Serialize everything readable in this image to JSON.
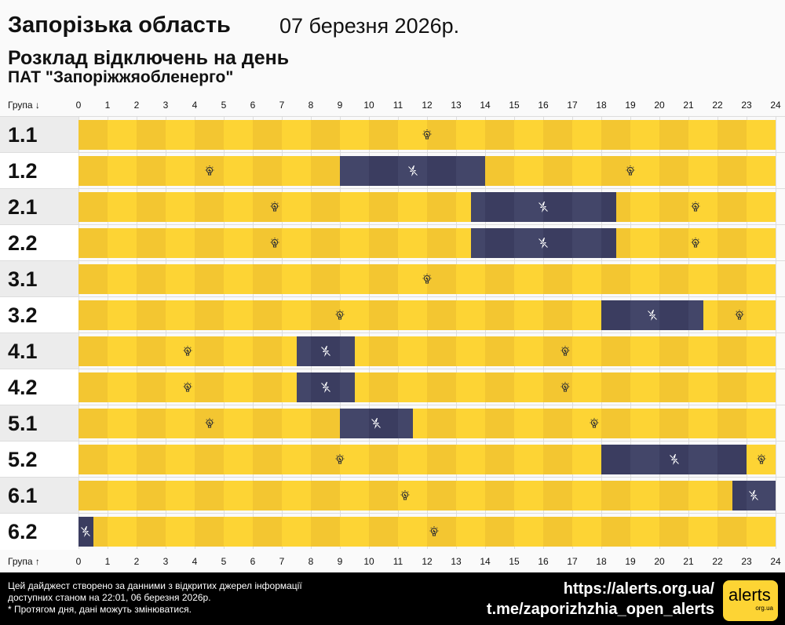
{
  "header": {
    "title": "Запорізька область",
    "date": "07 березня 2026р.",
    "subtitle": "Розклад відключень на день",
    "company": "ПАТ \"Запоріжжяобленерго\""
  },
  "axis": {
    "group_label_top": "Група ↓",
    "group_label_bottom": "Група ↑",
    "ticks": [
      "0",
      "1",
      "2",
      "3",
      "4",
      "5",
      "6",
      "7",
      "8",
      "9",
      "10",
      "11",
      "12",
      "13",
      "14",
      "15",
      "16",
      "17",
      "18",
      "19",
      "20",
      "21",
      "22",
      "23",
      "24"
    ]
  },
  "colors": {
    "on_light": "#fdd434",
    "on_dark": "#f3c631",
    "off_light": "#434669",
    "off_dark": "#3b3d60",
    "row_grey": "#ececec"
  },
  "icons": {
    "on": "lightbulb-icon",
    "off": "power-off-icon"
  },
  "chart_data": {
    "type": "table",
    "x_unit": "hour",
    "xlim": [
      0,
      24
    ],
    "groups": [
      {
        "name": "1.1",
        "outages": []
      },
      {
        "name": "1.2",
        "outages": [
          [
            9,
            14
          ]
        ]
      },
      {
        "name": "2.1",
        "outages": [
          [
            13.5,
            18.5
          ]
        ]
      },
      {
        "name": "2.2",
        "outages": [
          [
            13.5,
            18.5
          ]
        ]
      },
      {
        "name": "3.1",
        "outages": []
      },
      {
        "name": "3.2",
        "outages": [
          [
            18,
            21.5
          ]
        ]
      },
      {
        "name": "4.1",
        "outages": [
          [
            7.5,
            9.5
          ]
        ]
      },
      {
        "name": "4.2",
        "outages": [
          [
            7.5,
            9.5
          ]
        ]
      },
      {
        "name": "5.1",
        "outages": [
          [
            9,
            11.5
          ]
        ]
      },
      {
        "name": "5.2",
        "outages": [
          [
            18,
            23
          ]
        ]
      },
      {
        "name": "6.1",
        "outages": [
          [
            22.5,
            24
          ]
        ]
      },
      {
        "name": "6.2",
        "outages": [
          [
            0,
            0.5
          ]
        ]
      }
    ]
  },
  "footer": {
    "line1": "Цей дайджест створено за данними з відкритих джерел інформації",
    "line2": "доступних станом на 22:01, 06 березня 2026р.",
    "line3": "* Протягом дня, дані можуть змінюватися.",
    "url": "https://alerts.org.ua/",
    "telegram": "t.me/zaporizhzhia_open_alerts",
    "logo": "alerts",
    "logo_sub": "org.ua"
  }
}
